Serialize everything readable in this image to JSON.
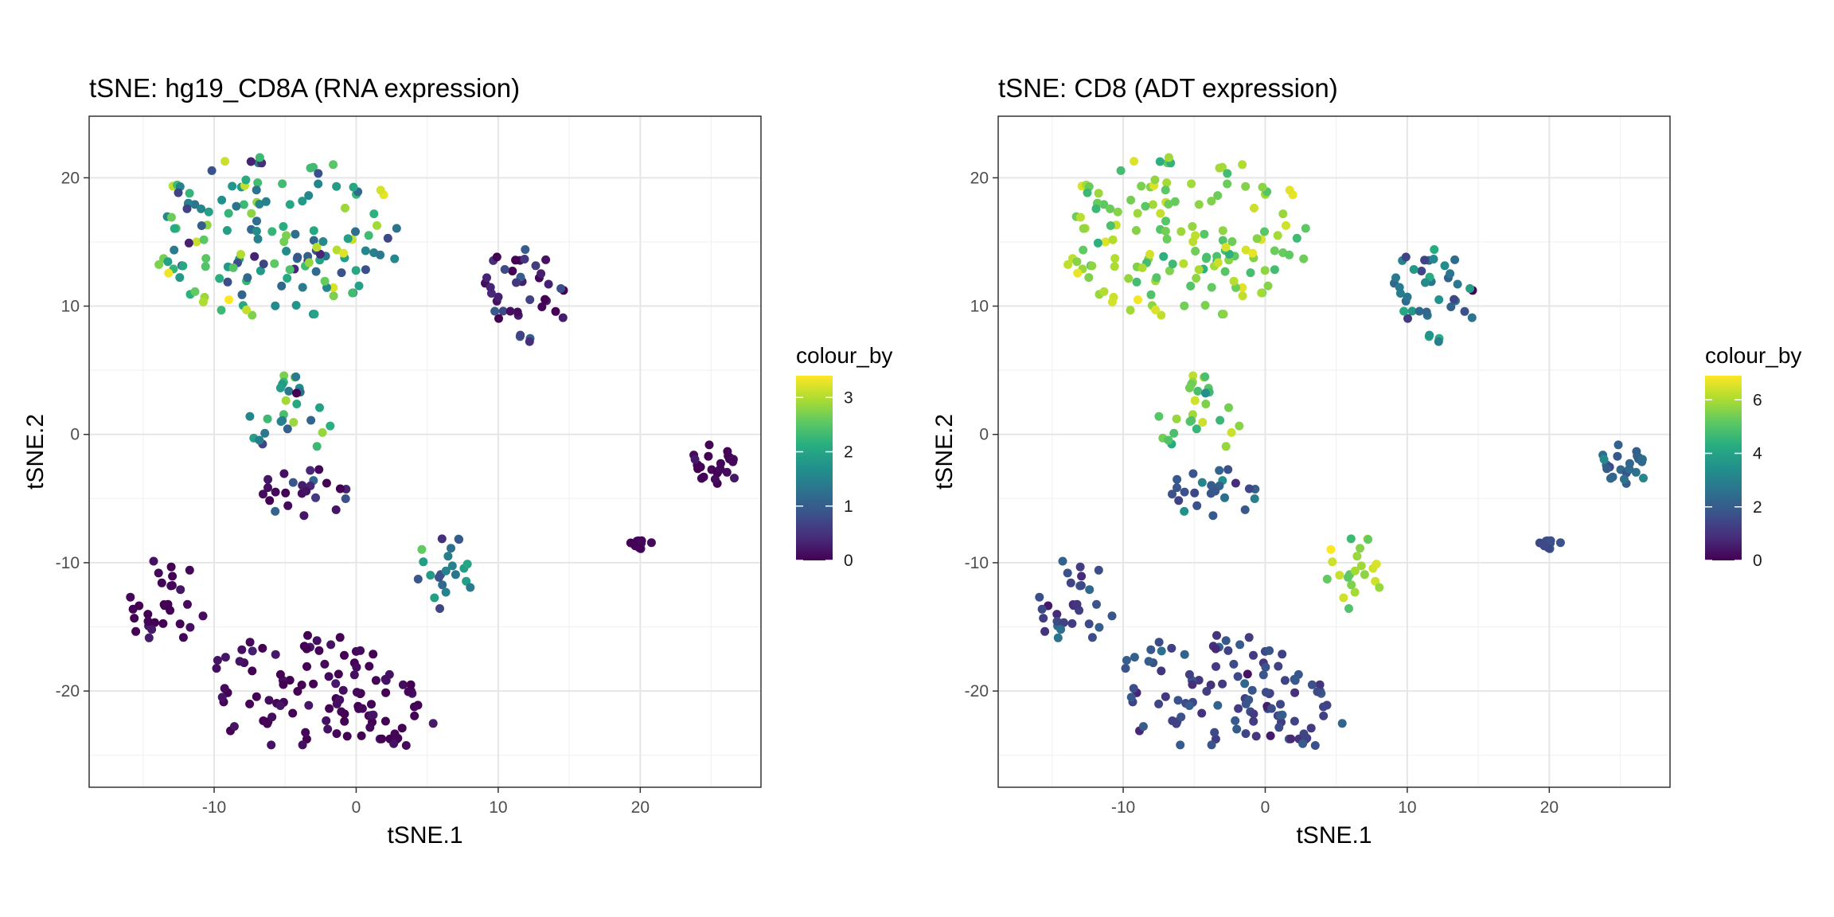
{
  "chart_data": [
    {
      "type": "scatter",
      "title": "tSNE: hg19_CD8A (RNA expression)",
      "xlabel": "tSNE.1",
      "ylabel": "tSNE.2",
      "xlim": [
        -18.8,
        28.5
      ],
      "ylim": [
        -27.5,
        24.8
      ],
      "x_ticks": [
        -10,
        0,
        10,
        20
      ],
      "x_tick_labels": [
        "-10",
        "0",
        "10",
        "20"
      ],
      "y_ticks": [
        -20,
        -10,
        0,
        10,
        20
      ],
      "y_tick_labels": [
        "-20",
        "-10",
        "0",
        "10",
        "20"
      ],
      "grid": true,
      "legend": {
        "title": "colour_by",
        "placement": "right",
        "colormap": "viridis",
        "range": [
          0,
          3.4
        ],
        "ticks": [
          0,
          1,
          2,
          3
        ],
        "tick_labels": [
          "0",
          "1",
          "2",
          "3"
        ]
      },
      "colour_scale_max": 3.4,
      "clusters": [
        {
          "cx": -5.5,
          "cy": 15.5,
          "rx": 9.5,
          "ry": 6.5,
          "n": 150,
          "mean": 1.9,
          "spread": 0.9
        },
        {
          "cx": 12.0,
          "cy": 11.0,
          "rx": 3.2,
          "ry": 3.8,
          "n": 40,
          "mean": 0.35,
          "spread": 0.45
        },
        {
          "cx": -4.8,
          "cy": 1.0,
          "rx": 3.0,
          "ry": 3.6,
          "n": 28,
          "mean": 1.7,
          "spread": 0.8
        },
        {
          "cx": -3.5,
          "cy": -4.5,
          "rx": 3.2,
          "ry": 2.2,
          "n": 24,
          "mean": 0.25,
          "spread": 0.35
        },
        {
          "cx": 6.3,
          "cy": -11.0,
          "rx": 2.2,
          "ry": 3.2,
          "n": 22,
          "mean": 1.4,
          "spread": 0.5
        },
        {
          "cx": 20.0,
          "cy": -8.7,
          "rx": 1.0,
          "ry": 0.8,
          "n": 10,
          "mean": 0.05,
          "spread": 0.1
        },
        {
          "cx": 25.3,
          "cy": -2.5,
          "rx": 1.8,
          "ry": 2.0,
          "n": 25,
          "mean": 0.05,
          "spread": 0.1
        },
        {
          "cx": -13.5,
          "cy": -13.0,
          "rx": 3.0,
          "ry": 3.5,
          "n": 30,
          "mean": 0.05,
          "spread": 0.1
        },
        {
          "cx": -3.5,
          "cy": -20.0,
          "rx": 7.5,
          "ry": 4.5,
          "n": 80,
          "mean": 0.05,
          "spread": 0.1
        },
        {
          "cx": 2.0,
          "cy": -22.0,
          "rx": 3.5,
          "ry": 3.0,
          "n": 30,
          "mean": 0.05,
          "spread": 0.1
        }
      ]
    },
    {
      "type": "scatter",
      "title": "tSNE: CD8 (ADT expression)",
      "xlabel": "tSNE.1",
      "ylabel": "tSNE.2",
      "xlim": [
        -18.8,
        28.5
      ],
      "ylim": [
        -27.5,
        24.8
      ],
      "x_ticks": [
        -10,
        0,
        10,
        20
      ],
      "x_tick_labels": [
        "-10",
        "0",
        "10",
        "20"
      ],
      "y_ticks": [
        -20,
        -10,
        0,
        10,
        20
      ],
      "y_tick_labels": [
        "-20",
        "-10",
        "0",
        "10",
        "20"
      ],
      "grid": true,
      "legend": {
        "title": "colour_by",
        "placement": "right",
        "colormap": "viridis",
        "range": [
          0,
          6.9
        ],
        "ticks": [
          0,
          2,
          4,
          6
        ],
        "tick_labels": [
          "0",
          "2",
          "4",
          "6"
        ]
      },
      "colour_scale_max": 6.9,
      "clusters": [
        {
          "cx": -5.5,
          "cy": 15.5,
          "rx": 9.5,
          "ry": 6.5,
          "n": 150,
          "mean": 5.6,
          "spread": 0.7
        },
        {
          "cx": 12.0,
          "cy": 11.0,
          "rx": 3.2,
          "ry": 3.8,
          "n": 40,
          "mean": 2.8,
          "spread": 1.0
        },
        {
          "cx": -4.8,
          "cy": 1.0,
          "rx": 3.0,
          "ry": 3.6,
          "n": 28,
          "mean": 5.2,
          "spread": 0.8
        },
        {
          "cx": -3.5,
          "cy": -4.5,
          "rx": 3.2,
          "ry": 2.2,
          "n": 24,
          "mean": 2.0,
          "spread": 0.6
        },
        {
          "cx": 6.3,
          "cy": -11.0,
          "rx": 2.2,
          "ry": 3.2,
          "n": 22,
          "mean": 5.8,
          "spread": 0.6
        },
        {
          "cx": 20.0,
          "cy": -8.7,
          "rx": 1.0,
          "ry": 0.8,
          "n": 10,
          "mean": 1.6,
          "spread": 0.4
        },
        {
          "cx": 25.3,
          "cy": -2.5,
          "rx": 1.8,
          "ry": 2.0,
          "n": 25,
          "mean": 2.3,
          "spread": 0.5
        },
        {
          "cx": -13.5,
          "cy": -13.0,
          "rx": 3.0,
          "ry": 3.5,
          "n": 30,
          "mean": 1.6,
          "spread": 0.5
        },
        {
          "cx": -3.5,
          "cy": -20.0,
          "rx": 7.5,
          "ry": 4.5,
          "n": 80,
          "mean": 1.5,
          "spread": 0.4
        },
        {
          "cx": 2.0,
          "cy": -22.0,
          "rx": 3.5,
          "ry": 3.0,
          "n": 30,
          "mean": 1.5,
          "spread": 0.4
        }
      ]
    }
  ]
}
